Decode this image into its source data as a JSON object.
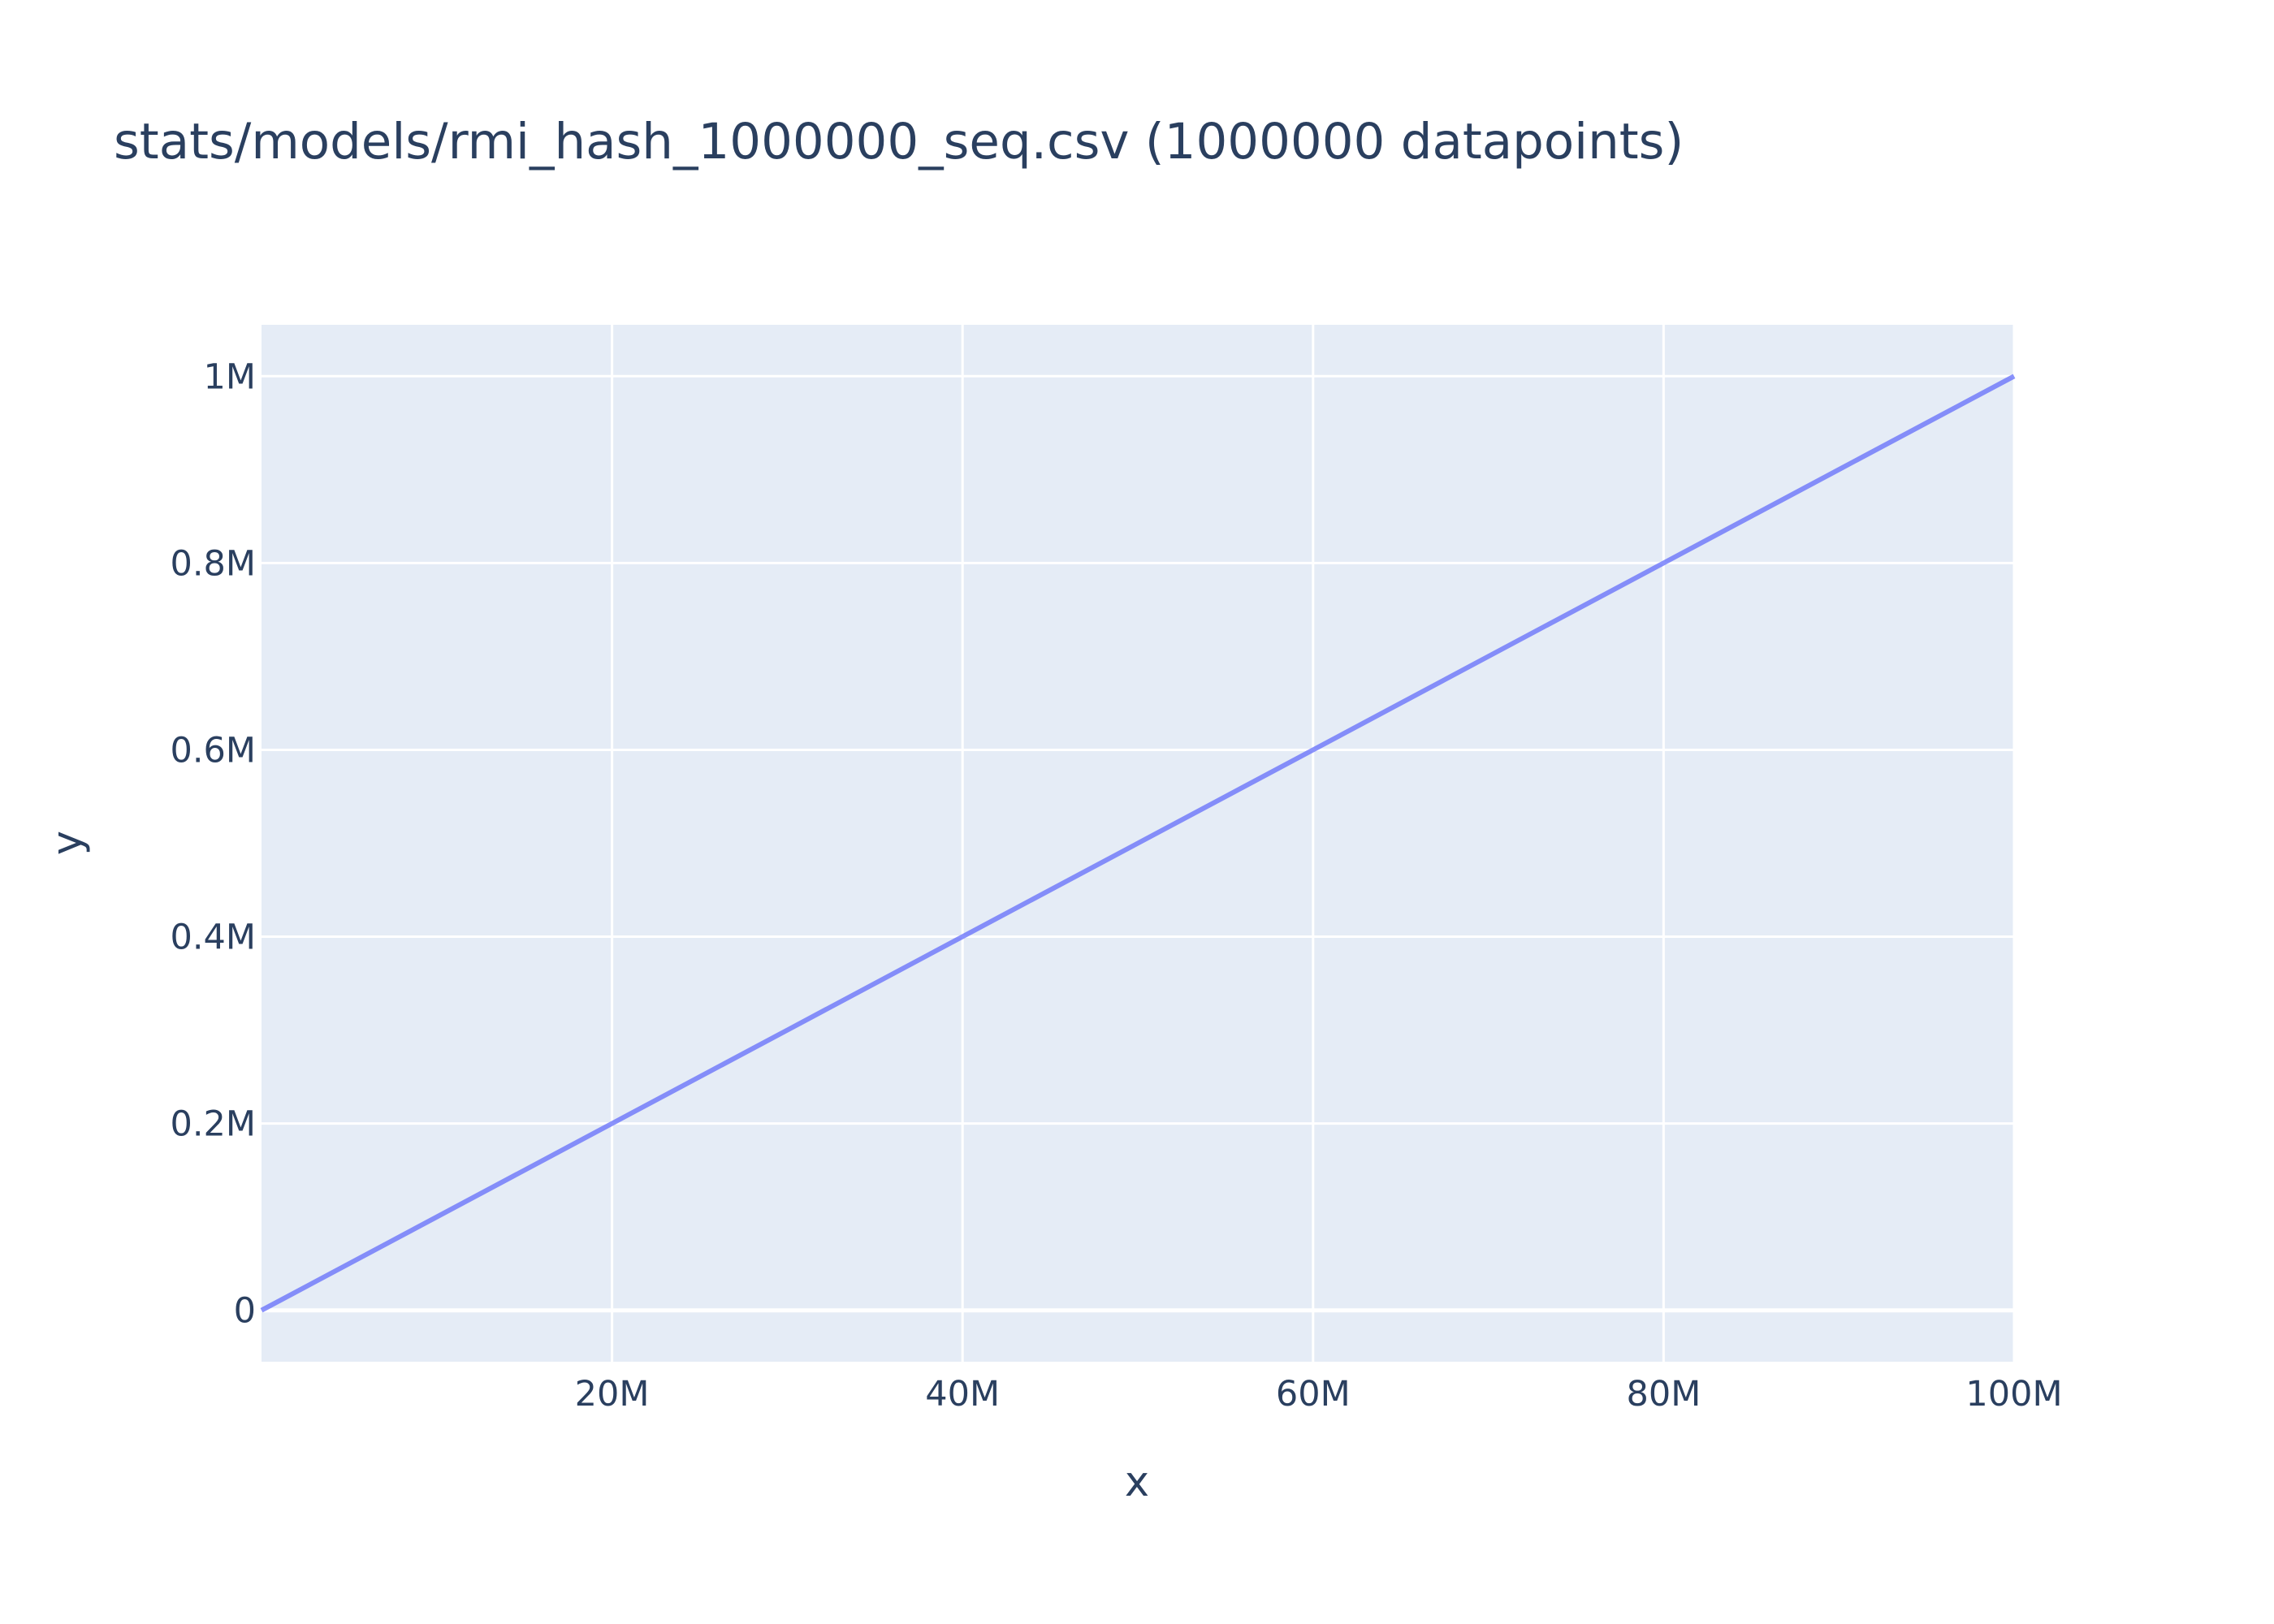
{
  "chart_data": {
    "type": "line",
    "title": "stats/models/rmi_hash_1000000_seq.csv (1000000 datapoints)",
    "xlabel": "x",
    "ylabel": "y",
    "xlim": [
      0,
      100000000
    ],
    "ylim": [
      -55000,
      1055000
    ],
    "x_ticks": [
      {
        "value": 20000000,
        "label": "20M"
      },
      {
        "value": 40000000,
        "label": "40M"
      },
      {
        "value": 60000000,
        "label": "60M"
      },
      {
        "value": 80000000,
        "label": "80M"
      },
      {
        "value": 100000000,
        "label": "100M"
      }
    ],
    "y_ticks": [
      {
        "value": 0,
        "label": "0"
      },
      {
        "value": 200000,
        "label": "0.2M"
      },
      {
        "value": 400000,
        "label": "0.4M"
      },
      {
        "value": 600000,
        "label": "0.6M"
      },
      {
        "value": 800000,
        "label": "0.8M"
      },
      {
        "value": 1000000,
        "label": "1M"
      }
    ],
    "grid": true,
    "legend": "none",
    "series": [
      {
        "x": [
          0,
          10000000,
          20000000,
          30000000,
          40000000,
          50000000,
          60000000,
          70000000,
          80000000,
          90000000,
          100000000
        ],
        "y": [
          0,
          100000,
          200000,
          300000,
          400000,
          500000,
          600000,
          700000,
          800000,
          900000,
          1000000
        ],
        "color": "#636efa"
      }
    ]
  },
  "colors": {
    "plot_background": "#e5ecf6",
    "grid": "#ffffff",
    "text": "#2a3f5f",
    "series": "#636efa"
  }
}
